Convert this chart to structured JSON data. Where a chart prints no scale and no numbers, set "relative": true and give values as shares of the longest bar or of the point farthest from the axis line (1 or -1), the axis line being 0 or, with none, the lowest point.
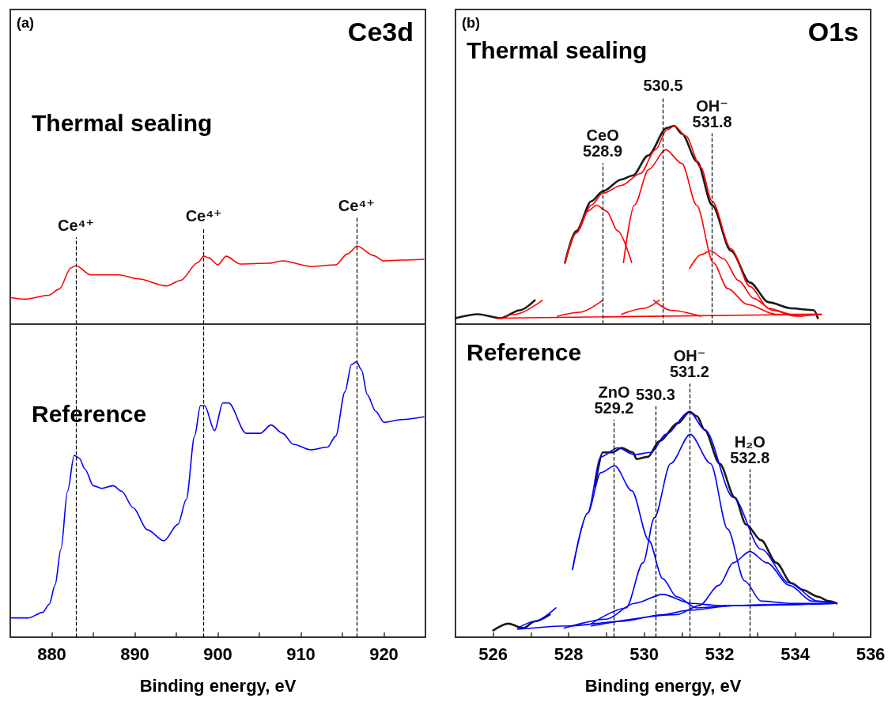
{
  "chart_data": [
    {
      "type": "line",
      "title": "Ce3d",
      "annotations": [
        "(a)",
        "Thermal sealing"
      ],
      "relative": true,
      "xlim": [
        875,
        925
      ],
      "tick_labels": false,
      "marker": "none",
      "line_style": "solid",
      "ref_lines": [
        {
          "axis": "x",
          "value": 882.9,
          "label": "Ce⁴⁺"
        },
        {
          "axis": "x",
          "value": 898.3,
          "label": "Ce⁴⁺"
        },
        {
          "axis": "x",
          "value": 916.7,
          "label": "Ce⁴⁺"
        }
      ],
      "series": [
        {
          "color": "#ff0000",
          "x": [
            875.0,
            876.8,
            879.6,
            880.9,
            882.3,
            882.9,
            884.7,
            888.1,
            890.4,
            893.8,
            895.5,
            897.6,
            898.3,
            898.9,
            900.0,
            901.0,
            902.7,
            906.1,
            907.8,
            911.2,
            914.2,
            915.6,
            916.8,
            918.7,
            920.0,
            922.1,
            924.8
          ],
          "values": [
            0.34,
            0.32,
            0.37,
            0.45,
            0.72,
            0.75,
            0.63,
            0.63,
            0.58,
            0.49,
            0.56,
            0.79,
            0.87,
            0.85,
            0.76,
            0.87,
            0.77,
            0.78,
            0.81,
            0.74,
            0.76,
            0.9,
            1,
            0.88,
            0.81,
            0.82,
            0.83
          ]
        }
      ]
    },
    {
      "type": "line",
      "xlabel": "Binding energy, eV",
      "annotations": [
        "Reference"
      ],
      "relative": true,
      "xlim": [
        875,
        925
      ],
      "xticks": [
        880,
        {
          "value": 885,
          "label": null
        },
        890,
        {
          "value": 895,
          "label": null
        },
        900,
        {
          "value": 905,
          "label": null
        },
        910,
        {
          "value": 915,
          "label": null
        },
        920
      ],
      "tick_labels": "x",
      "marker": "none",
      "line_style": "solid",
      "ref_lines": [
        {
          "axis": "x",
          "value": 882.9
        },
        {
          "axis": "x",
          "value": 898.3
        },
        {
          "axis": "x",
          "value": 916.7
        }
      ],
      "series": [
        {
          "color": "#0000ff",
          "x": [
            875.1,
            877.2,
            878.9,
            879.7,
            880.4,
            881.1,
            881.9,
            882.7,
            883.3,
            884.0,
            885.0,
            886.0,
            887.4,
            888.4,
            889.8,
            891.5,
            893.5,
            895.2,
            896.2,
            897.2,
            897.9,
            898.4,
            899.6,
            900.6,
            901.3,
            903.4,
            905.1,
            906.4,
            907.8,
            909.1,
            911.2,
            913.2,
            914.2,
            915.3,
            916.1,
            916.7,
            917.3,
            918.0,
            919.0,
            920.0,
            922.1,
            924.8
          ],
          "values": [
            0.07,
            0.07,
            0.09,
            0.12,
            0.19,
            0.32,
            0.53,
            0.66,
            0.65,
            0.61,
            0.55,
            0.54,
            0.55,
            0.53,
            0.47,
            0.39,
            0.35,
            0.41,
            0.5,
            0.73,
            0.84,
            0.84,
            0.75,
            0.85,
            0.85,
            0.74,
            0.74,
            0.77,
            0.74,
            0.7,
            0.68,
            0.69,
            0.73,
            0.89,
            0.99,
            1,
            0.97,
            0.88,
            0.82,
            0.78,
            0.79,
            0.8
          ]
        }
      ]
    },
    {
      "type": "line",
      "title": "O1s",
      "annotations": [
        "(b)",
        "Thermal sealing"
      ],
      "relative": true,
      "xlim": [
        525,
        536
      ],
      "tick_labels": false,
      "marker": "none",
      "line_style": "solid",
      "ref_lines": [
        {
          "axis": "x",
          "value": 528.9,
          "label": "CeO\n528.9"
        },
        {
          "axis": "x",
          "value": 530.5,
          "label": "530.5"
        },
        {
          "axis": "x",
          "value": 531.8,
          "label": "OH⁻\n531.8"
        }
      ],
      "series": [
        {
          "color": "#1a1a1a",
          "x": [
            525.0,
            525.6,
            526.2,
            526.7,
            527.1,
            527.5,
            527.9,
            528.2,
            528.6,
            528.9,
            529.4,
            529.7,
            530.1,
            530.6,
            530.8,
            531.0,
            531.4,
            531.8,
            532.3,
            532.8,
            533.3,
            533.9,
            534.5,
            534.6
          ],
          "values": [
            0.03,
            0.05,
            0.03,
            0.07,
            0.12,
            null,
            0.31,
            0.47,
            0.62,
            0.67,
            0.73,
            0.75,
            0.85,
            0.99,
            1,
            0.96,
            0.82,
            0.6,
            0.37,
            0.21,
            0.11,
            0.08,
            0.07,
            0.03
          ]
        },
        {
          "color": "#ff0000",
          "x": [
            526.3,
            526.6,
            527.3,
            527.6,
            527.9,
            528.2,
            528.6,
            528.9,
            529.4,
            529.9,
            530.3,
            530.6,
            530.8,
            531.1,
            531.5,
            531.8,
            532.3,
            532.8,
            533.3,
            533.9,
            534.7
          ],
          "values": [
            0.04,
            0.05,
            0.12,
            null,
            0.31,
            0.46,
            0.6,
            0.66,
            0.7,
            0.76,
            0.88,
            0.98,
            1,
            0.95,
            0.79,
            0.62,
            0.38,
            0.19,
            0.08,
            0.05,
            0.05
          ]
        },
        {
          "color": "#ff0000",
          "x": [
            527.9,
            528.2,
            528.5,
            528.74,
            529.0,
            529.3,
            529.67,
            530.0,
            530.25,
            530.7,
            531.5
          ],
          "values": [
            0.31,
            0.46,
            0.57,
            0.6,
            0.57,
            0.47,
            0.31,
            null,
            0.12,
            0.07,
            0.04
          ]
        },
        {
          "color": "#ff0000",
          "x": [
            527.7,
            528.3,
            528.9,
            529.2,
            529.45,
            529.74,
            530.12,
            530.57,
            531.0,
            531.39,
            531.83,
            532.21,
            532.73,
            533.48,
            534.2
          ],
          "values": [
            0.04,
            0.06,
            0.12,
            null,
            0.31,
            0.6,
            0.78,
            0.88,
            0.81,
            0.6,
            0.31,
            0.18,
            0.1,
            0.05,
            0.04
          ]
        },
        {
          "color": "#ff0000",
          "x": [
            529.4,
            530.0,
            530.4,
            530.8,
            531.2,
            531.5,
            531.76,
            532.1,
            532.5,
            532.9,
            533.4,
            534.0,
            534.7
          ],
          "values": [
            0.05,
            0.08,
            0.12,
            null,
            0.28,
            0.35,
            0.37,
            0.33,
            0.22,
            0.13,
            0.07,
            0.04,
            0.05
          ]
        },
        {
          "color": "#ff0000",
          "x": [
            526.1,
            534.67
          ],
          "values": [
            0.03,
            0.05
          ]
        }
      ]
    },
    {
      "type": "line",
      "xlabel": "Binding energy, eV",
      "annotations": [
        "Reference"
      ],
      "relative": true,
      "xlim": [
        525,
        536
      ],
      "xticks": [
        526,
        {
          "value": 527,
          "label": null
        },
        528,
        {
          "value": 529,
          "label": null
        },
        530,
        {
          "value": 531,
          "label": null
        },
        532,
        {
          "value": 533,
          "label": null
        },
        534,
        {
          "value": 535,
          "label": null
        },
        536
      ],
      "tick_labels": "x",
      "marker": "none",
      "line_style": "solid",
      "ref_lines": [
        {
          "axis": "x",
          "value": 529.2,
          "label": "ZnO\n529.2"
        },
        {
          "axis": "x",
          "value": 530.3,
          "label": "530.3"
        },
        {
          "axis": "x",
          "value": 531.2,
          "label": "OH⁻\n531.2"
        },
        {
          "axis": "x",
          "value": 532.8,
          "label": "H₂O\n532.8"
        }
      ],
      "series": [
        {
          "color": "#1a1a1a",
          "x": [
            526.0,
            526.4,
            526.8,
            527.1,
            527.5,
            528.0,
            528.7,
            528.9,
            529.15,
            529.4,
            529.7,
            529.8,
            530.1,
            530.4,
            530.9,
            531.2,
            531.4,
            531.6,
            532.0,
            532.4,
            532.7,
            533.1,
            533.5,
            533.9,
            534.2,
            534.6,
            534.9,
            535.1
          ],
          "values": [
            0.03,
            0.06,
            0.04,
            0.07,
            0.1,
            null,
            0.67,
            0.82,
            0.82,
            0.84,
            0.82,
            0.79,
            0.8,
            0.87,
            0.95,
            1,
            0.98,
            0.92,
            0.77,
            0.62,
            0.5,
            0.43,
            0.33,
            0.24,
            0.21,
            0.18,
            0.16,
            0.15
          ]
        },
        {
          "color": "#0000ff",
          "x": [
            528.1,
            528.5,
            528.85,
            529.3,
            529.74,
            530.19,
            530.57,
            531.2,
            531.61,
            532.36,
            533.1,
            533.85,
            534.6,
            535.08
          ],
          "values": [
            0.3,
            0.55,
            0.8,
            0.84,
            0.81,
            0.82,
            0.9,
            1.0,
            0.92,
            0.62,
            0.39,
            0.24,
            0.16,
            0.15
          ]
        },
        {
          "color": "#0000ff",
          "x": [
            526.65,
            527.1,
            527.66
          ],
          "values": [
            0.04,
            0.07,
            0.13
          ]
        },
        {
          "color": "#0000ff",
          "x": [
            526.65,
            528.0,
            529.37,
            530.5,
            531.2,
            532.36,
            533.5,
            535.08
          ],
          "values": [
            0.035,
            0.05,
            0.07,
            0.1,
            0.12,
            0.14,
            0.145,
            0.15
          ]
        },
        {
          "color": "#0000ff",
          "x": [
            528.1,
            528.5,
            528.85,
            529.22,
            529.67,
            530.12,
            530.49,
            530.86,
            531.39,
            532.36,
            535.08
          ],
          "values": [
            0.3,
            0.55,
            0.73,
            0.76,
            0.65,
            0.43,
            0.26,
            0.18,
            0.13,
            0.14,
            0.15
          ]
        },
        {
          "color": "#0000ff",
          "x": [
            527.88,
            529.0,
            529.74,
            530.49,
            531.24,
            531.98,
            535.08
          ],
          "values": [
            0.04,
            0.08,
            0.15,
            0.19,
            0.15,
            0.14,
            0.15
          ]
        },
        {
          "color": "#0000ff",
          "x": [
            528.6,
            529.52,
            529.97,
            530.27,
            530.7,
            531.22,
            531.76,
            532.21,
            532.66,
            533.1,
            533.85,
            535.08
          ],
          "values": [
            0.06,
            0.13,
            0.33,
            0.53,
            0.77,
            0.9,
            0.77,
            0.48,
            0.25,
            0.16,
            0.15,
            0.15
          ]
        },
        {
          "color": "#0000ff",
          "x": [
            528.6,
            530.86,
            531.46,
            531.98,
            532.36,
            532.8,
            533.25,
            533.85,
            534.45,
            535.08
          ],
          "values": [
            0.05,
            0.1,
            0.14,
            0.23,
            0.33,
            0.38,
            0.33,
            0.23,
            0.16,
            0.15
          ]
        }
      ]
    }
  ]
}
